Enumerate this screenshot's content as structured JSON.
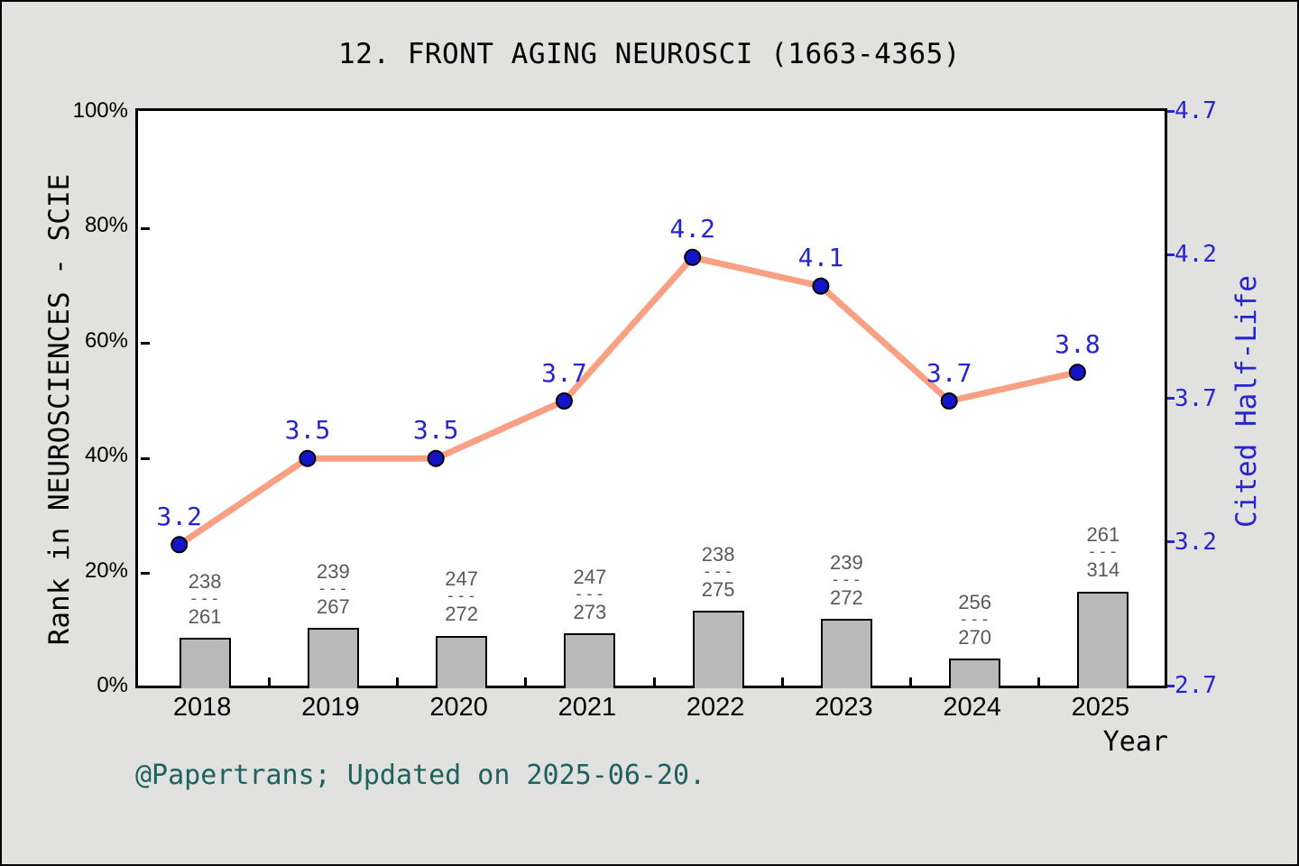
{
  "title": "12. FRONT AGING NEUROSCI (1663-4365)",
  "footer": "@Papertrans; Updated on 2025-06-20.",
  "fraction_divider": "---",
  "colors": {
    "background": "#e1e1df",
    "plot_bg": "#ffffff",
    "axis": "#000000",
    "bar_fill": "#b9b9b9",
    "line": "#f7a083",
    "marker": "#1414c8",
    "blue_text": "#2626cc",
    "fraction_text": "#595959",
    "footer_text": "#1e615d"
  },
  "chart_data": {
    "type": "bar+line combo",
    "title": "12. FRONT AGING NEUROSCI (1663-4365)",
    "xlabel": "Year",
    "categories": [
      "2018",
      "2019",
      "2020",
      "2021",
      "2022",
      "2023",
      "2024",
      "2025"
    ],
    "grid": false,
    "legend": "none",
    "left_axis": {
      "label": "Rank in NEUROSCIENCES - SCIE",
      "ticks": [
        "0%",
        "20%",
        "40%",
        "60%",
        "80%",
        "100%"
      ],
      "lim": [
        0,
        100
      ]
    },
    "right_axis": {
      "label": "Cited Half-Life",
      "ticks": [
        "2.7",
        "3.2",
        "3.7",
        "4.2",
        "4.7"
      ],
      "lim": [
        2.7,
        4.7
      ]
    },
    "bar_series": {
      "name": "Rank in NEUROSCIENCES - SCIE (rank/total, bar height = 1 - rank/total)",
      "rank": [
        238,
        239,
        247,
        247,
        238,
        239,
        256,
        261
      ],
      "total": [
        261,
        267,
        272,
        273,
        275,
        272,
        270,
        314
      ],
      "bar_height_pct": [
        8.8,
        10.5,
        9.2,
        9.5,
        13.5,
        12.1,
        5.2,
        16.9
      ]
    },
    "line_series": {
      "name": "Cited Half-Life",
      "values": [
        3.2,
        3.5,
        3.5,
        3.7,
        4.2,
        4.1,
        3.7,
        3.8
      ]
    }
  }
}
